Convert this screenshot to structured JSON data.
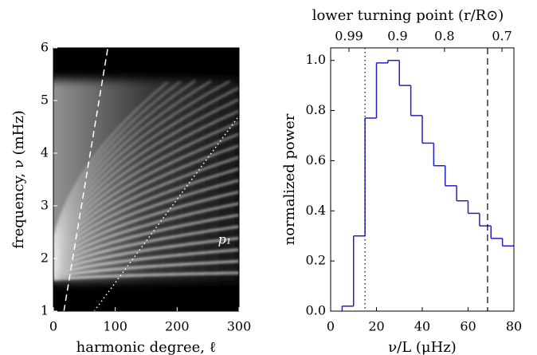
{
  "chart_data": [
    {
      "type": "image",
      "xlabel": "harmonic degree, ℓ",
      "ylabel": "frequency, ν (mHz)",
      "xlim": [
        0,
        300
      ],
      "xticks": [
        0,
        100,
        200,
        300
      ],
      "ylim": [
        1,
        6
      ],
      "yticks": [
        1,
        2,
        3,
        4,
        5,
        6
      ],
      "annotations": [
        "p₁"
      ],
      "lines": [
        {
          "style": "dashed",
          "color": "#ffffff",
          "x": [
            17,
            88
          ],
          "y": [
            1,
            6
          ]
        },
        {
          "style": "dotted",
          "color": "#ffffff",
          "x": [
            66,
            300
          ],
          "y": [
            1,
            4.71
          ]
        }
      ]
    },
    {
      "type": "histogram",
      "xlabel": "ν/L (μHz)",
      "ylabel": "normalized power",
      "x2label": "lower turning point (r/R⊙)",
      "xlim": [
        0,
        80
      ],
      "xticks": [
        0,
        20,
        40,
        60,
        80
      ],
      "ylim": [
        0,
        1.05
      ],
      "yticks": [
        {
          "value": 0,
          "label": "0.0"
        },
        0.2,
        0.4,
        0.6,
        0.8,
        {
          "value": 1,
          "label": "1.0"
        }
      ],
      "x2ticks": [
        {
          "value": 8,
          "label": "0.99"
        },
        {
          "value": 29.2,
          "label": "0.9"
        },
        {
          "value": 49.7,
          "label": "0.8"
        },
        {
          "value": 74.8,
          "label": "0.7"
        }
      ],
      "color": "#1f1fd0",
      "bins": [
        5,
        10,
        15,
        20,
        25,
        30,
        35,
        40,
        45,
        50,
        55,
        60,
        65,
        70,
        75,
        80
      ],
      "values": [
        0.02,
        0.3,
        0.77,
        0.99,
        1.0,
        0.9,
        0.78,
        0.67,
        0.58,
        0.5,
        0.44,
        0.39,
        0.34,
        0.29,
        0.26
      ],
      "vlines": [
        {
          "x": 15,
          "style": "dotted",
          "color": "#000000"
        },
        {
          "x": 68.5,
          "style": "dashed",
          "color": "#000000"
        }
      ]
    }
  ]
}
